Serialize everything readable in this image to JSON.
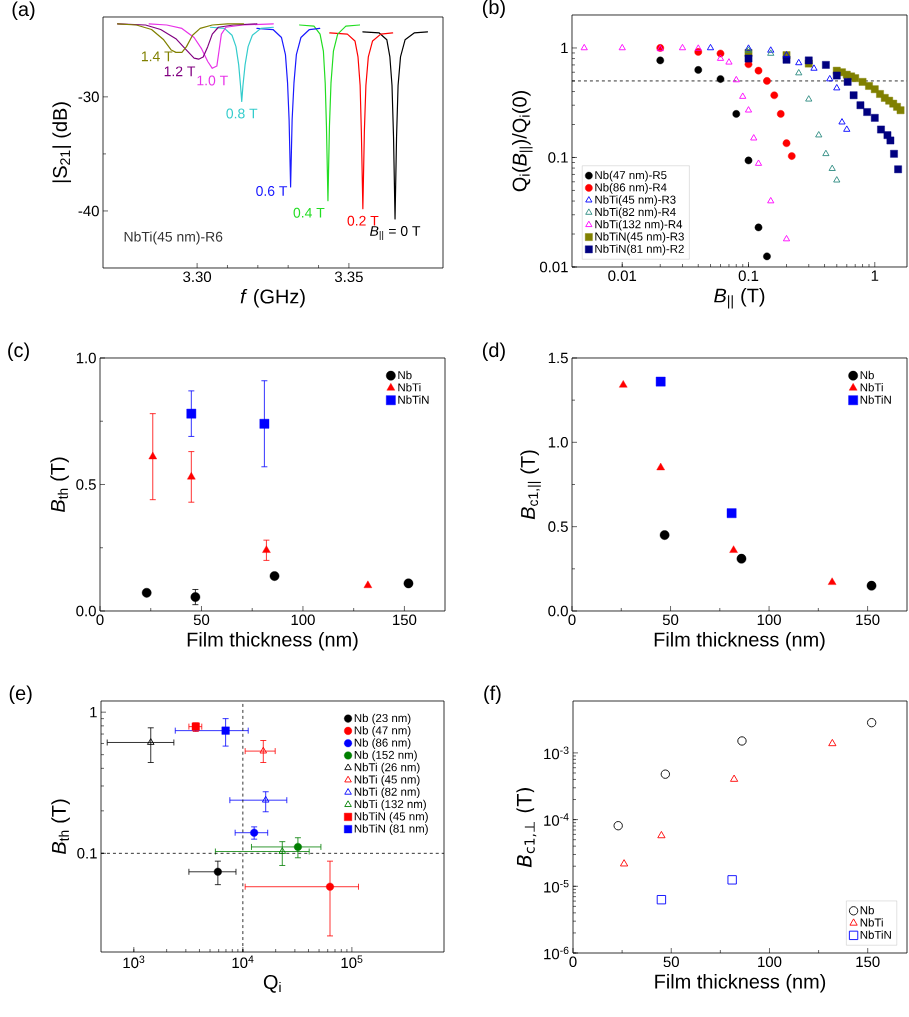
{
  "chart_data": [
    {
      "type": "line",
      "title": "(a)",
      "xlabel": "*f* (GHz)",
      "ylabel": "|S$_{21}$| (dB)",
      "xlim": [
        3.269,
        3.381
      ],
      "ylim": [
        -45,
        -23
      ],
      "xticks": [
        {
          "value": 3.3,
          "label": "3.30"
        },
        {
          "value": 3.35,
          "label": "3.35"
        }
      ],
      "yticks": [
        -40,
        -30
      ],
      "annotations": [
        "NbTi(45 nm)-R6"
      ],
      "series": [
        {
          "name": "*B*$_{||}$ = 0 T",
          "color": "#000000",
          "x": [
            3.3546,
            3.36,
            3.3625,
            3.3635,
            3.3642,
            3.3647,
            3.3652,
            3.3657,
            3.3662,
            3.367,
            3.3685,
            3.3715,
            3.3759
          ],
          "values": [
            -24.3,
            -24.4,
            -25.0,
            -26.5,
            -29.0,
            -33.5,
            -40.7,
            -33.5,
            -29.0,
            -26.5,
            -25.0,
            -24.4,
            -24.3
          ]
        },
        {
          "name": "0.2 T",
          "color": "#ff0000",
          "x": [
            3.3437,
            3.3495,
            3.352,
            3.353,
            3.3537,
            3.3541,
            3.3546,
            3.3551,
            3.3556,
            3.3564,
            3.3578,
            3.3605,
            3.3644
          ],
          "values": [
            -24.4,
            -24.5,
            -25.1,
            -26.5,
            -29.0,
            -33.0,
            -39.8,
            -33.0,
            -29.0,
            -26.5,
            -25.1,
            -24.5,
            -24.4
          ]
        },
        {
          "name": "0.4 T",
          "color": "#22dd22",
          "x": [
            3.3338,
            3.3385,
            3.3405,
            3.3416,
            3.3422,
            3.3426,
            3.3431,
            3.3436,
            3.3441,
            3.3449,
            3.3463,
            3.349,
            3.3535
          ],
          "values": [
            -23.7,
            -23.8,
            -24.5,
            -26.0,
            -28.8,
            -32.5,
            -39.1,
            -32.5,
            -28.8,
            -26.0,
            -24.5,
            -23.8,
            -23.7
          ]
        },
        {
          "name": "0.6 T",
          "color": "#1a1aff",
          "x": [
            3.3197,
            3.325,
            3.3278,
            3.3291,
            3.3298,
            3.3303,
            3.3308,
            3.3313,
            3.3319,
            3.3327,
            3.3342,
            3.337,
            3.3404
          ],
          "values": [
            -24.0,
            -24.1,
            -24.8,
            -26.3,
            -28.8,
            -32.0,
            -37.9,
            -32.0,
            -28.8,
            -26.3,
            -24.8,
            -24.1,
            -24.0
          ]
        },
        {
          "name": "0.8 T",
          "color": "#33cccc",
          "x": [
            3.3044,
            3.309,
            3.3115,
            3.3128,
            3.3137,
            3.3143,
            3.3147,
            3.3151,
            3.3158,
            3.3168,
            3.3182,
            3.321,
            3.3251
          ],
          "values": [
            -23.9,
            -24.0,
            -24.6,
            -25.6,
            -27.2,
            -29.0,
            -30.4,
            -29.0,
            -27.2,
            -25.6,
            -24.6,
            -24.0,
            -23.9
          ]
        },
        {
          "name": "1.0 T",
          "color": "#e833e8",
          "x": [
            3.2842,
            3.29,
            3.295,
            3.299,
            3.3015,
            3.3035,
            3.305,
            3.3065,
            3.3072,
            3.308,
            3.3095,
            3.315,
            3.3251
          ],
          "values": [
            -23.6,
            -23.7,
            -24.0,
            -24.8,
            -25.8,
            -26.9,
            -27.5,
            -27.3,
            -26.0,
            -24.5,
            -23.9,
            -23.7,
            -23.6
          ]
        },
        {
          "name": "1.2 T",
          "color": "#800080",
          "x": [
            3.2738,
            3.283,
            3.288,
            3.293,
            3.2965,
            3.299,
            3.3005,
            3.302,
            3.3035,
            3.305,
            3.307,
            3.312,
            3.3197
          ],
          "values": [
            -23.6,
            -23.7,
            -24.1,
            -24.9,
            -25.9,
            -26.6,
            -26.7,
            -26.5,
            -25.6,
            -24.5,
            -23.9,
            -23.7,
            -23.6
          ]
        },
        {
          "name": "1.4 T",
          "color": "#808000",
          "x": [
            3.2738,
            3.28,
            3.285,
            3.289,
            3.2915,
            3.293,
            3.295,
            3.2965,
            3.2985,
            3.301,
            3.305,
            3.31,
            3.3153
          ],
          "values": [
            -23.6,
            -23.7,
            -24.1,
            -25.0,
            -25.9,
            -26.1,
            -26.1,
            -25.6,
            -24.6,
            -24.0,
            -23.7,
            -23.6,
            -23.6
          ]
        }
      ]
    },
    {
      "type": "scatter",
      "title": "(b)",
      "xlabel": "*B*$_{||}$ (T)",
      "ylabel": "Q$_{i}$(*B*$_{||}$)/Q$_{i}$(0)",
      "log": "xy",
      "legend": "bottom left",
      "xlim": [
        0.004,
        1.8
      ],
      "ylim": [
        0.01,
        2
      ],
      "xticks": [
        0.01,
        0.1,
        1
      ],
      "yticks": [
        0.01,
        0.1,
        1
      ],
      "ref_lines": [
        {
          "axis": "y",
          "value": 0.5,
          "color": "#000000",
          "line_style": "dashed"
        }
      ],
      "series": [
        {
          "name": "Nb(47 nm)-R5",
          "color": "#000000",
          "marker": "circle",
          "x": [
            0.02,
            0.04,
            0.06,
            0.08,
            0.1,
            0.12,
            0.14
          ],
          "values": [
            0.77,
            0.63,
            0.52,
            0.25,
            0.094,
            0.023,
            0.0125
          ]
        },
        {
          "name": "Nb(86 nm)-R4",
          "color": "#ff0000",
          "marker": "circle",
          "x": [
            0.02,
            0.04,
            0.06,
            0.1,
            0.12,
            0.14,
            0.16,
            0.18,
            0.2,
            0.22
          ],
          "values": [
            1.0,
            0.92,
            0.89,
            0.71,
            0.62,
            0.5,
            0.37,
            0.25,
            0.135,
            0.103
          ]
        },
        {
          "name": "NbTi(45 nm)-R3",
          "color": "#0000ff",
          "marker": "triangle",
          "x": [
            0.05,
            0.1,
            0.15,
            0.2,
            0.25,
            0.33,
            0.44,
            0.5,
            0.55,
            0.6
          ],
          "values": [
            1.0,
            0.99,
            0.95,
            0.86,
            0.73,
            0.65,
            0.52,
            0.43,
            0.21,
            0.18
          ]
        },
        {
          "name": "NbTi(82 nm)-R4",
          "color": "#2a8a80",
          "marker": "triangle",
          "x": [
            0.1,
            0.15,
            0.25,
            0.3,
            0.36,
            0.41,
            0.46,
            0.5
          ],
          "values": [
            0.95,
            0.89,
            0.59,
            0.34,
            0.16,
            0.108,
            0.079,
            0.062
          ]
        },
        {
          "name": "NbTi(132 nm)-R4",
          "color": "#ff00ff",
          "marker": "triangle",
          "x": [
            0.005,
            0.01,
            0.02,
            0.03,
            0.04,
            0.06,
            0.07,
            0.08,
            0.09,
            0.1,
            0.11,
            0.12,
            0.15,
            0.2
          ],
          "values": [
            1.0,
            1.0,
            0.98,
            1.0,
            0.99,
            0.8,
            0.74,
            0.51,
            0.36,
            0.27,
            0.15,
            0.088,
            0.04,
            0.018
          ]
        },
        {
          "name": "NbTiN(45 nm)-R3",
          "color": "#808000",
          "marker": "square",
          "x": [
            0.1,
            0.2,
            0.3,
            0.5,
            0.55,
            0.6,
            0.65,
            0.7,
            0.8,
            0.9,
            1.0,
            1.1,
            1.2,
            1.3,
            1.4,
            1.5,
            1.6
          ],
          "values": [
            0.9,
            0.86,
            0.72,
            0.62,
            0.6,
            0.57,
            0.55,
            0.53,
            0.49,
            0.45,
            0.42,
            0.38,
            0.35,
            0.33,
            0.31,
            0.29,
            0.27
          ]
        },
        {
          "name": "NbTiN(81 nm)-R2",
          "color": "#000080",
          "marker": "square",
          "x": [
            0.1,
            0.2,
            0.3,
            0.41,
            0.5,
            0.61,
            0.68,
            0.77,
            0.87,
            1.0,
            1.12,
            1.26,
            1.33,
            1.42,
            1.53
          ],
          "values": [
            0.8,
            0.78,
            0.77,
            0.7,
            0.56,
            0.49,
            0.37,
            0.3,
            0.26,
            0.23,
            0.18,
            0.16,
            0.143,
            0.108,
            0.078
          ]
        }
      ]
    },
    {
      "type": "scatter",
      "title": "(c)",
      "xlabel": "Film thickness (nm)",
      "ylabel": "*B*$_{th}$ (T)",
      "legend": "top right",
      "xlim": [
        0,
        170
      ],
      "ylim": [
        0,
        1
      ],
      "xticks": [
        0,
        50,
        100,
        150
      ],
      "yticks": [
        {
          "value": 0,
          "label": "0.0"
        },
        {
          "value": 0.5,
          "label": "0.5"
        },
        {
          "value": 1,
          "label": "1.0"
        }
      ],
      "series": [
        {
          "name": "Nb",
          "color": "#000000",
          "marker": "circle",
          "x": [
            23,
            47,
            86,
            152
          ],
          "values": [
            0.072,
            0.055,
            0.138,
            0.109
          ],
          "errors": [
            null,
            0.03,
            null,
            null
          ]
        },
        {
          "name": "NbTi",
          "color": "#ff0000",
          "marker": "triangle",
          "x": [
            26,
            45,
            82,
            132
          ],
          "values": [
            0.61,
            0.53,
            0.24,
            0.101
          ],
          "errors": [
            0.17,
            0.1,
            0.04,
            null
          ]
        },
        {
          "name": "NbTiN",
          "color": "#0000ff",
          "marker": "square",
          "x": [
            45,
            81
          ],
          "values": [
            0.78,
            0.74
          ],
          "errors": [
            0.09,
            0.17
          ]
        }
      ]
    },
    {
      "type": "scatter",
      "title": "(d)",
      "xlabel": "Film thickness (nm)",
      "ylabel": "*B*$_{c1,||}$ (T)",
      "legend": "top right",
      "xlim": [
        0,
        170
      ],
      "ylim": [
        0,
        1.5
      ],
      "xticks": [
        0,
        50,
        100,
        150
      ],
      "yticks": [
        {
          "value": 0,
          "label": "0.0"
        },
        {
          "value": 0.5,
          "label": "0.5"
        },
        {
          "value": 1,
          "label": "1.0"
        },
        {
          "value": 1.5,
          "label": "1.5"
        }
      ],
      "series": [
        {
          "name": "Nb",
          "color": "#000000",
          "marker": "circle",
          "x": [
            47,
            86,
            152
          ],
          "values": [
            0.45,
            0.31,
            0.15
          ]
        },
        {
          "name": "NbTi",
          "color": "#ff0000",
          "marker": "triangle",
          "x": [
            26,
            45,
            82,
            132
          ],
          "values": [
            1.34,
            0.85,
            0.36,
            0.17
          ]
        },
        {
          "name": "NbTiN",
          "color": "#0000ff",
          "marker": "square",
          "x": [
            45,
            81
          ],
          "values": [
            1.36,
            0.58
          ]
        }
      ]
    },
    {
      "type": "scatter",
      "title": "(e)",
      "xlabel": "Q$_{i}$",
      "ylabel": "*B*$_{th}$ (T)",
      "log": "xy",
      "legend": "top right",
      "xlim": [
        500,
        700000
      ],
      "ylim": [
        0.02,
        1.2
      ],
      "xticks": [
        {
          "value": 1000,
          "label": "10$^{3}$"
        },
        {
          "value": 10000,
          "label": "10$^{4}$"
        },
        {
          "value": 100000,
          "label": "10$^{5}$"
        }
      ],
      "yticks": [
        0.1,
        1
      ],
      "ref_lines": [
        {
          "axis": "x",
          "value": 10000,
          "color": "#000000",
          "line_style": "dashed"
        },
        {
          "axis": "y",
          "value": 0.1,
          "color": "#000000",
          "line_style": "dashed"
        }
      ],
      "series": [
        {
          "name": "Nb (23 nm)",
          "color": "#000000",
          "marker": "circle",
          "x": [
            5900
          ],
          "values": [
            0.074
          ],
          "errors": [
            [
              0.06,
              0.088
            ]
          ],
          "xerrors": [
            [
              3200,
              8650
            ]
          ]
        },
        {
          "name": "Nb (47 nm)",
          "color": "#ff0000",
          "marker": "circle",
          "x": [
            63000
          ],
          "values": [
            0.058
          ],
          "errors": [
            [
              0.026,
              0.088
            ]
          ],
          "xerrors": [
            [
              10500,
              115000
            ]
          ]
        },
        {
          "name": "Nb (86 nm)",
          "color": "#0000ff",
          "marker": "circle",
          "x": [
            12700
          ],
          "values": [
            0.14
          ],
          "errors": [
            [
              0.126,
              0.154
            ]
          ],
          "xerrors": [
            [
              8500,
              16900
            ]
          ]
        },
        {
          "name": "Nb (152 nm)",
          "color": "#007f00",
          "marker": "circle",
          "x": [
            32000
          ],
          "values": [
            0.111
          ],
          "errors": [
            [
              0.093,
              0.129
            ]
          ],
          "xerrors": [
            [
              12000,
              52000
            ]
          ]
        },
        {
          "name": "NbTi (26 nm)",
          "color": "#000000",
          "marker": "triangle",
          "x": [
            1430
          ],
          "values": [
            0.61
          ],
          "errors": [
            [
              0.44,
              0.775
            ]
          ],
          "xerrors": [
            [
              570,
              2330
            ]
          ]
        },
        {
          "name": "NbTi (45 nm)",
          "color": "#ff0000",
          "marker": "triangle",
          "x": [
            15400
          ],
          "values": [
            0.53
          ],
          "errors": [
            [
              0.44,
              0.63
            ]
          ],
          "xerrors": [
            [
              10500,
              19800
            ]
          ]
        },
        {
          "name": "NbTi (82 nm)",
          "color": "#0000ff",
          "marker": "triangle",
          "x": [
            16200
          ],
          "values": [
            0.238
          ],
          "errors": [
            [
              0.197,
              0.273
            ]
          ],
          "xerrors": [
            [
              7600,
              25300
            ]
          ]
        },
        {
          "name": "NbTi (132 nm)",
          "color": "#007f00",
          "marker": "triangle",
          "x": [
            23000
          ],
          "values": [
            0.103
          ],
          "errors": [
            [
              0.082,
              0.121
            ]
          ],
          "xerrors": [
            [
              5600,
              40600
            ]
          ]
        },
        {
          "name": "NbTiN (45 nm)",
          "color": "#ff0000",
          "marker": "square",
          "x": [
            3700
          ],
          "values": [
            0.79
          ],
          "errors": [
            [
              0.73,
              0.84
            ]
          ],
          "xerrors": [
            [
              3200,
              4200
            ]
          ]
        },
        {
          "name": "NbTiN (81 nm)",
          "color": "#0000ff",
          "marker": "square",
          "x": [
            6950
          ],
          "values": [
            0.74
          ],
          "errors": [
            [
              0.575,
              0.9
            ]
          ],
          "xerrors": [
            [
              2400,
              11200
            ]
          ]
        }
      ]
    },
    {
      "type": "scatter",
      "title": "(f)",
      "xlabel": "Film thickness (nm)",
      "ylabel": "*B*$_{c1,⊥}$ (T)",
      "log": "y",
      "legend": "bottom right",
      "xlim": [
        0,
        170
      ],
      "ylim": [
        1e-06,
        0.006
      ],
      "xticks": [
        0,
        50,
        100,
        150
      ],
      "yticks": [
        {
          "value": 1e-06,
          "label": "10$^{-6}$"
        },
        {
          "value": 1e-05,
          "label": "10$^{-5}$"
        },
        {
          "value": 0.0001,
          "label": "10$^{-4}$"
        },
        {
          "value": 0.001,
          "label": "10$^{-3}$"
        }
      ],
      "series": [
        {
          "name": "Nb",
          "color": "#000000",
          "marker": "circle",
          "x": [
            23,
            47,
            86,
            152
          ],
          "values": [
            8.1e-05,
            0.00048,
            0.00151,
            0.00284
          ]
        },
        {
          "name": "NbTi",
          "color": "#ff0000",
          "marker": "triangle",
          "x": [
            26,
            45,
            82,
            132
          ],
          "values": [
            2.17e-05,
            5.75e-05,
            0.000403,
            0.00138
          ]
        },
        {
          "name": "NbTiN",
          "color": "#0000ff",
          "marker": "square",
          "x": [
            45,
            81
          ],
          "values": [
            6.3e-06,
            1.25e-05
          ]
        }
      ]
    }
  ]
}
